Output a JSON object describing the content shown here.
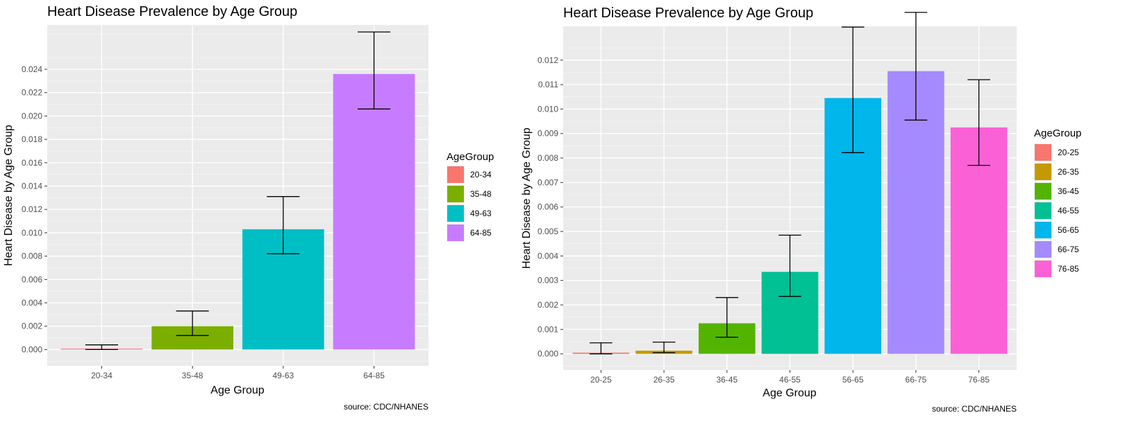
{
  "chart_data": [
    {
      "type": "bar",
      "title": "Heart Disease Prevalence by Age Group",
      "xlabel": "Age Group",
      "ylabel": "Heart Disease by Age Group",
      "caption": "source: CDC/NHANES",
      "legend_title": "AgeGroup",
      "legend_position": "right",
      "grid": true,
      "ylim": [
        -0.0014,
        0.0278
      ],
      "yticks": [
        0.0,
        0.002,
        0.004,
        0.006,
        0.008,
        0.01,
        0.012,
        0.014,
        0.016,
        0.018,
        0.02,
        0.022,
        0.024
      ],
      "ytick_labels": [
        "0.000",
        "0.002",
        "0.004",
        "0.006",
        "0.008",
        "0.010",
        "0.012",
        "0.014",
        "0.016",
        "0.018",
        "0.020",
        "0.022",
        "0.024"
      ],
      "categories": [
        "20-34",
        "35-48",
        "49-63",
        "64-85"
      ],
      "values": [
        5e-05,
        0.002,
        0.0103,
        0.0236
      ],
      "error_low": [
        0.0,
        0.0012,
        0.0082,
        0.0206
      ],
      "error_high": [
        0.0004,
        0.0033,
        0.0131,
        0.0272
      ],
      "colors": [
        "#F8766D",
        "#7CAE00",
        "#00BFC4",
        "#C77CFF"
      ]
    },
    {
      "type": "bar",
      "title": "Heart Disease Prevalence by Age Group",
      "xlabel": "Age Group",
      "ylabel": "Heart Disease by Age Group",
      "caption": "source: CDC/NHANES",
      "legend_title": "AgeGroup",
      "legend_position": "right",
      "grid": true,
      "ylim": [
        -0.00066,
        0.01338
      ],
      "yticks": [
        0.0,
        0.001,
        0.002,
        0.003,
        0.004,
        0.005,
        0.006,
        0.007,
        0.008,
        0.009,
        0.01,
        0.011,
        0.012
      ],
      "ytick_labels": [
        "0.000",
        "0.001",
        "0.002",
        "0.003",
        "0.004",
        "0.005",
        "0.006",
        "0.007",
        "0.008",
        "0.009",
        "0.010",
        "0.011",
        "0.012"
      ],
      "categories": [
        "20-25",
        "26-35",
        "36-45",
        "46-55",
        "56-65",
        "66-75",
        "76-85"
      ],
      "values": [
        5e-05,
        0.00013,
        0.00125,
        0.00335,
        0.01045,
        0.01155,
        0.00925
      ],
      "error_low": [
        0.0,
        5e-05,
        0.00068,
        0.00235,
        0.00822,
        0.00955,
        0.0077
      ],
      "error_high": [
        0.00045,
        0.00048,
        0.0023,
        0.00485,
        0.01335,
        0.01395,
        0.0112
      ],
      "colors": [
        "#F8766D",
        "#C49A00",
        "#53B400",
        "#00C094",
        "#00B6EB",
        "#A58AFF",
        "#FB61D7"
      ]
    }
  ]
}
